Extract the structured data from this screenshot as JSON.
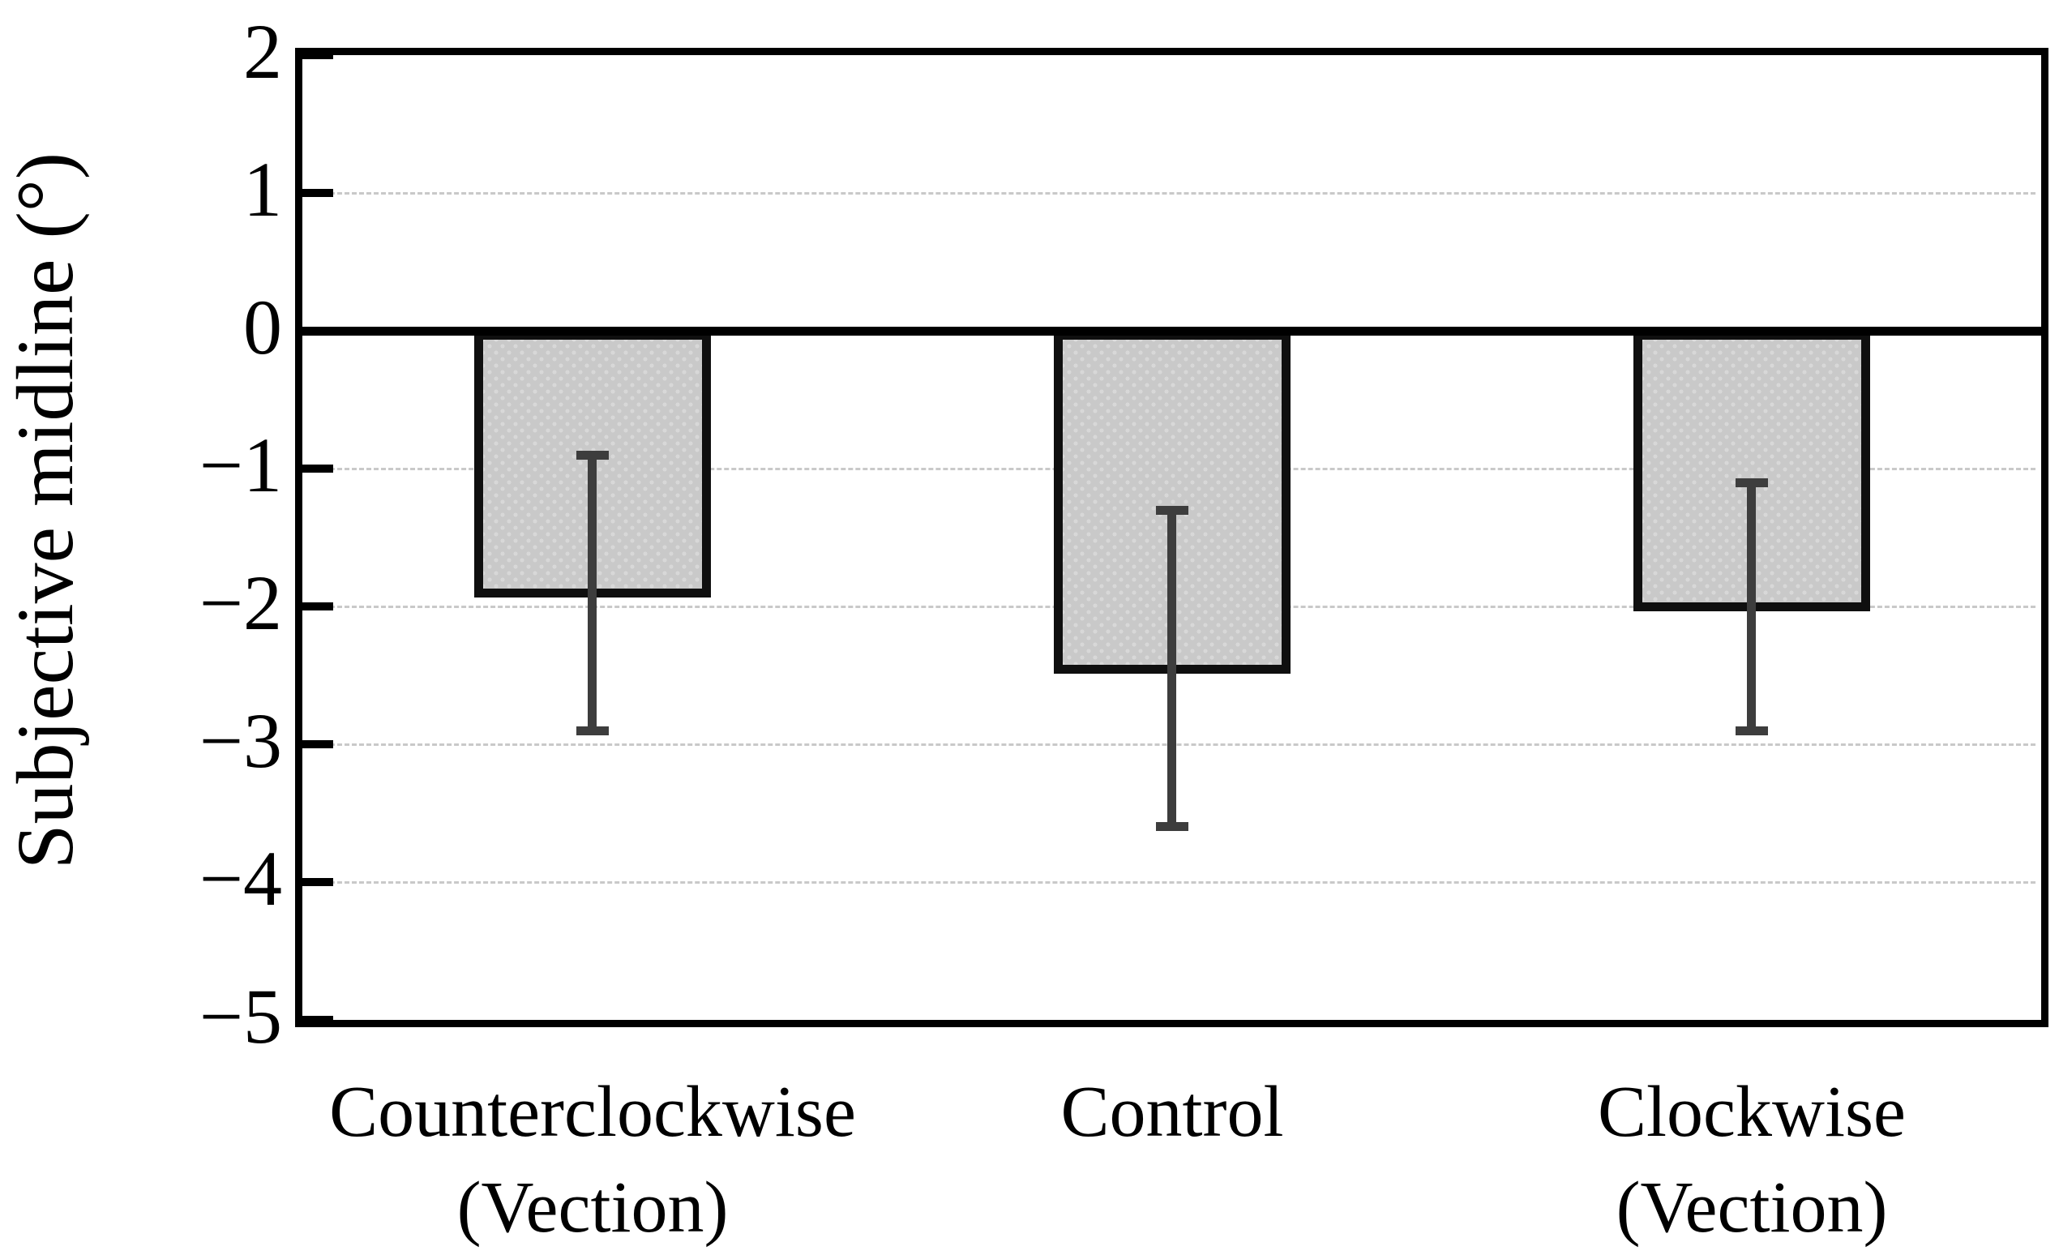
{
  "figure": {
    "background": "#ffffff"
  },
  "chart_data": {
    "type": "bar",
    "title": "",
    "xlabel": "",
    "ylabel": "Subjective midline (°)",
    "categories": [
      "Counterclockwise (Vection)",
      "Control",
      "Clockwise (Vection)"
    ],
    "categories_display": [
      "Counterclockwise\n(Vection)",
      "Control",
      "Clockwise\n(Vection)"
    ],
    "values": [
      -1.9,
      -2.45,
      -2.0
    ],
    "error_upper": [
      -0.9,
      -1.3,
      -1.1
    ],
    "error_lower": [
      -2.9,
      -3.6,
      -2.9
    ],
    "ylim": [
      2,
      -5
    ],
    "yticks": [
      2,
      1,
      0,
      -1,
      -2,
      -3,
      -4,
      -5
    ],
    "tick_labels": [
      "2",
      "1",
      "0",
      "−1",
      "−2",
      "−3",
      "−4",
      "−5"
    ],
    "gridlines_at": [
      1,
      -1,
      -2,
      -3,
      -4
    ],
    "grid": "dashed horizontal at integers",
    "legend": "none",
    "colors": {
      "bar_fill": "#c9c9c9",
      "bar_dot": "#d8d8d8",
      "bar_border": "#0f0f0f",
      "error_bar": "#3d3d3d",
      "gridline": "#c9c9c9",
      "axis": "#000000",
      "background": "#ffffff"
    }
  }
}
